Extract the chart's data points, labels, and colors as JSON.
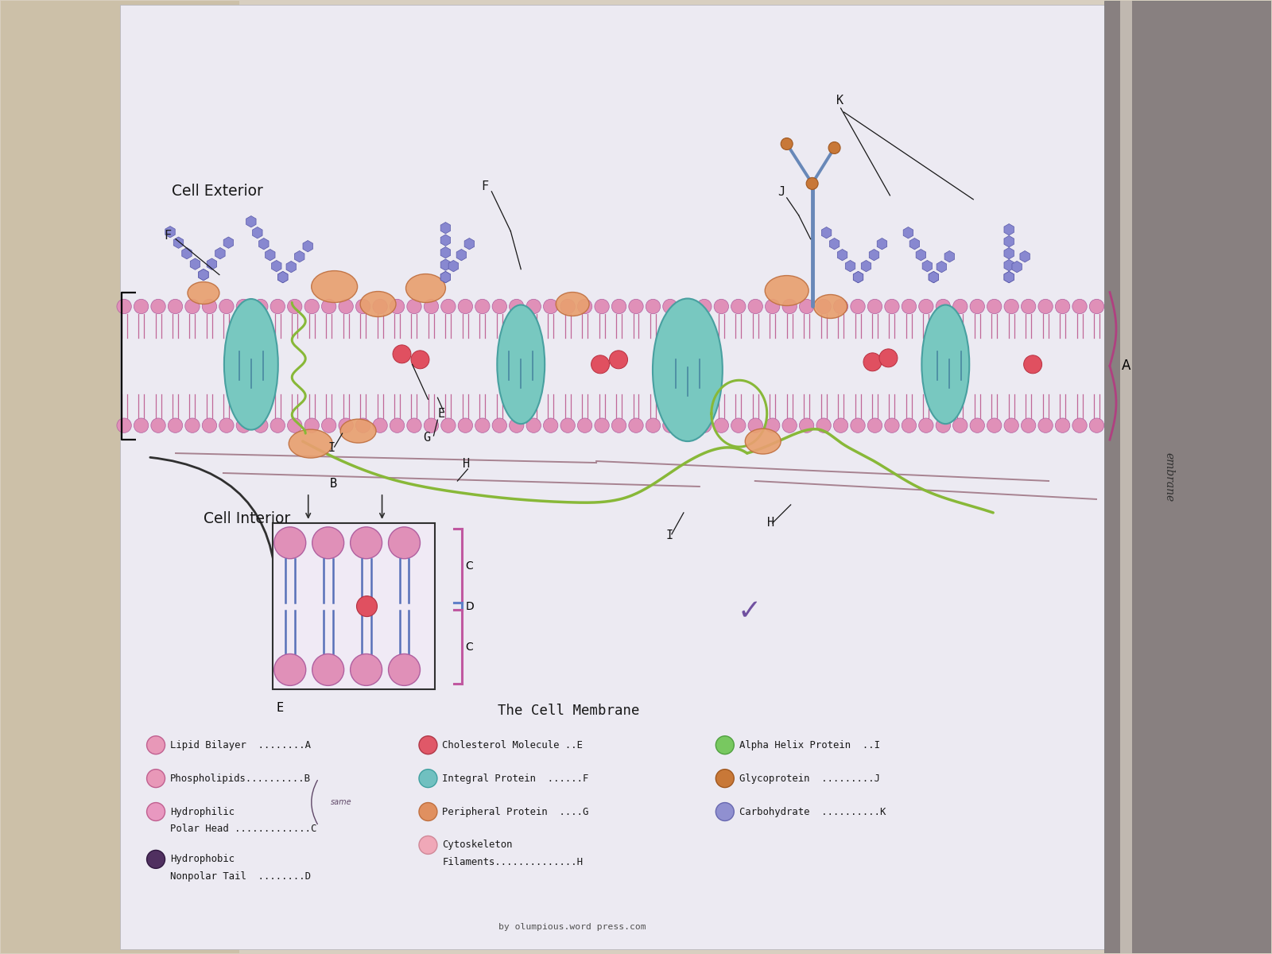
{
  "title": "The Cell Membrane",
  "bg_left_color": "#d8cfc0",
  "bg_right_color": "#c8c0b8",
  "paper_color": "#eceaf2",
  "phospholipid_head_color": "#e090b8",
  "phospholipid_tail_color": "#c06090",
  "integral_protein_color": "#78c8c0",
  "peripheral_protein_color": "#e8a070",
  "cholesterol_color": "#e05060",
  "alpha_helix_color": "#88b840",
  "glycoprotein_color": "#c07838",
  "carbohydrate_color": "#8888d0",
  "cytoskeleton_color": "#905868",
  "spine_color": "#888888",
  "legend_items": [
    {
      "color": "#e898b8",
      "border": "#c06090",
      "label": "Lipid Bilayer  ........A",
      "col": 0
    },
    {
      "color": "#e898b8",
      "border": "#c06090",
      "label": "Phospholipids..........B",
      "col": 0
    },
    {
      "color": "#e898c0",
      "border": "#c06090",
      "label": "Hydrophilic",
      "label2": "Polar Head .............C",
      "col": 0
    },
    {
      "color": "#503060",
      "border": "#301840",
      "label": "Hydrophobic",
      "label2": "Nonpolar Tail  ........D",
      "col": 0
    },
    {
      "color": "#e05868",
      "border": "#b03848",
      "label": "Cholesterol Molecule ..E",
      "col": 1
    },
    {
      "color": "#70c0c0",
      "border": "#40a0a0",
      "label": "Integral Protein  ......F",
      "col": 1
    },
    {
      "color": "#e09060",
      "border": "#c07040",
      "label": "Peripheral Protein  ....G",
      "col": 1
    },
    {
      "color": "#f0a8b8",
      "border": "#d08898",
      "label": "Cytoskeleton",
      "label2": "Filaments..............H",
      "col": 1
    },
    {
      "color": "#78c860",
      "border": "#50a040",
      "label": "Alpha Helix Protein  ..I",
      "col": 2
    },
    {
      "color": "#c87838",
      "border": "#a05820",
      "label": "Glycoprotein  .........J",
      "col": 2
    },
    {
      "color": "#9090d0",
      "border": "#6868b0",
      "label": "Carbohydrate  ..........K",
      "col": 2
    }
  ]
}
